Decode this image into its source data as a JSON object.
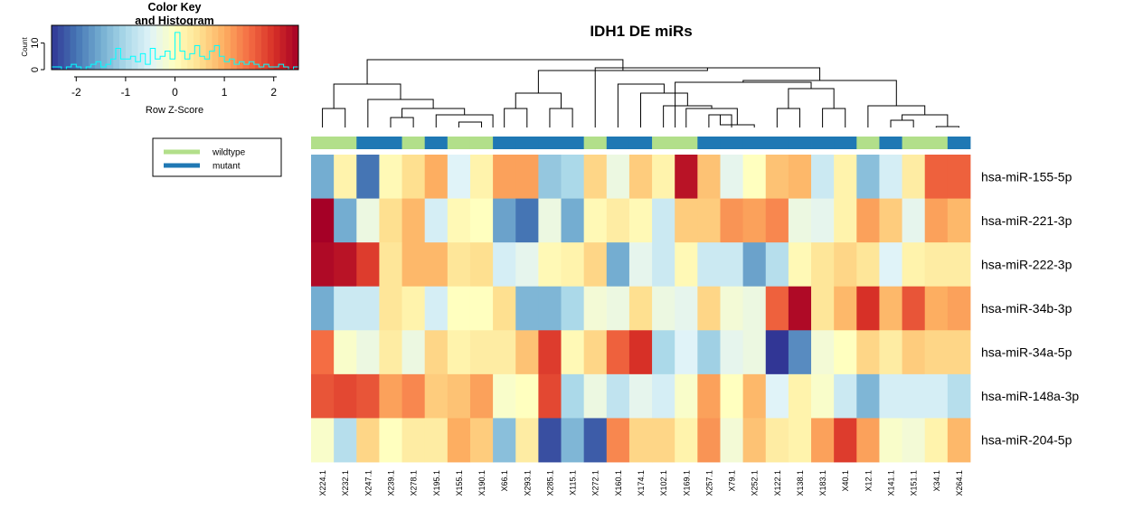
{
  "chart_data": {
    "type": "heatmap",
    "title": "IDH1 DE miRs",
    "rows": [
      "hsa-miR-155-5p",
      "hsa-miR-221-3p",
      "hsa-miR-222-3p",
      "hsa-miR-34b-3p",
      "hsa-miR-34a-5p",
      "hsa-miR-148a-3p",
      "hsa-miR-204-5p"
    ],
    "columns": [
      "X224.1",
      "X232.1",
      "X247.1",
      "X239.1",
      "X278.1",
      "X195.1",
      "X155.1",
      "X190.1",
      "X66.1",
      "X293.1",
      "X285.1",
      "X115.1",
      "X272.1",
      "X160.1",
      "X174.1",
      "X102.1",
      "X169.1",
      "X257.1",
      "X79.1",
      "X252.1",
      "X122.1",
      "X138.1",
      "X183.1",
      "X40.1",
      "X12.1",
      "X141.1",
      "X151.1",
      "X34.1",
      "X264.1"
    ],
    "groups": [
      "wildtype",
      "wildtype",
      "mutant",
      "mutant",
      "wildtype",
      "mutant",
      "wildtype",
      "wildtype",
      "mutant",
      "mutant",
      "mutant",
      "mutant",
      "wildtype",
      "mutant",
      "mutant",
      "wildtype",
      "wildtype",
      "mutant",
      "mutant",
      "mutant",
      "mutant",
      "mutant",
      "mutant",
      "mutant",
      "wildtype",
      "mutant",
      "wildtype",
      "wildtype",
      "mutant"
    ],
    "group_colors": {
      "wildtype": "#b2df8a",
      "mutant": "#1f78b4"
    },
    "values": [
      [
        -1.5,
        0.2,
        -2.0,
        0.1,
        0.5,
        1.0,
        -0.5,
        0.2,
        1.1,
        1.1,
        -1.2,
        -1.0,
        0.6,
        -0.3,
        0.7,
        0.2,
        2.3,
        0.8,
        -0.4,
        0.0,
        0.8,
        0.9,
        -0.7,
        0.2,
        -1.3,
        -0.6,
        0.3,
        1.6,
        1.6
      ],
      [
        2.5,
        -1.5,
        -0.3,
        0.5,
        0.9,
        -0.6,
        0.1,
        0.0,
        -1.6,
        -2.0,
        -0.3,
        -1.5,
        0.1,
        0.3,
        0.1,
        -0.7,
        0.7,
        0.7,
        1.2,
        1.1,
        1.3,
        -0.3,
        -0.4,
        0.2,
        1.1,
        0.7,
        -0.4,
        1.1,
        0.9
      ],
      [
        2.4,
        2.3,
        1.9,
        0.4,
        0.9,
        0.9,
        0.4,
        0.5,
        -0.6,
        -0.4,
        0.1,
        0.2,
        0.6,
        -1.5,
        -0.4,
        -0.7,
        0.1,
        -0.7,
        -0.7,
        -1.6,
        -0.9,
        0.1,
        0.4,
        0.6,
        0.4,
        -0.5,
        0.2,
        0.3,
        0.3
      ],
      [
        -1.5,
        -0.7,
        -0.7,
        0.4,
        0.2,
        -0.6,
        0.0,
        0.0,
        0.5,
        -1.4,
        -1.4,
        -1.0,
        -0.2,
        -0.3,
        0.5,
        -0.3,
        -0.4,
        0.6,
        -0.2,
        -0.3,
        1.6,
        2.4,
        0.4,
        0.9,
        2.0,
        0.9,
        1.7,
        1.0,
        1.1
      ],
      [
        1.5,
        -0.1,
        -0.3,
        0.3,
        -0.3,
        0.6,
        0.2,
        0.3,
        0.3,
        0.8,
        1.9,
        0.1,
        0.6,
        1.6,
        2.0,
        -1.0,
        -0.5,
        -1.1,
        -0.4,
        -0.3,
        -2.5,
        -1.8,
        -0.2,
        0.0,
        0.6,
        0.3,
        0.7,
        0.6,
        0.6
      ],
      [
        1.7,
        1.8,
        1.7,
        1.1,
        1.3,
        0.7,
        0.8,
        1.1,
        -0.1,
        0.0,
        1.8,
        -1.0,
        -0.3,
        -0.8,
        -0.4,
        -0.6,
        -0.1,
        1.1,
        0.0,
        0.9,
        -0.5,
        0.2,
        -0.1,
        -0.7,
        -1.4,
        -0.6,
        -0.6,
        -0.6,
        -0.9
      ],
      [
        -0.1,
        -0.9,
        0.6,
        0.0,
        0.3,
        0.3,
        1.0,
        0.7,
        -1.3,
        0.3,
        -2.3,
        -1.4,
        -2.2,
        1.3,
        0.6,
        0.6,
        0.2,
        1.2,
        -0.2,
        0.8,
        0.3,
        0.2,
        1.1,
        1.9,
        1.1,
        -0.1,
        -0.2,
        0.2,
        0.9
      ]
    ],
    "color_key": {
      "title_line1": "Color Key",
      "title_line2": "and Histogram",
      "xlabel": "Row Z-Score",
      "ylabel": "Count",
      "xlim": [
        -2.5,
        2.5
      ],
      "xticks": [
        "-2",
        "-1",
        "0",
        "1",
        "2"
      ],
      "yticks": [
        "0",
        "10"
      ],
      "histogram_counts": [
        1,
        1,
        0,
        1,
        2,
        1,
        0,
        1,
        2,
        3,
        1,
        2,
        4,
        8,
        4,
        4,
        5,
        3,
        6,
        2,
        8,
        4,
        5,
        7,
        4,
        14,
        7,
        4,
        6,
        9,
        5,
        4,
        7,
        9,
        5,
        3,
        4,
        2,
        3,
        2,
        3,
        2,
        1,
        2,
        1,
        1,
        2,
        1,
        0,
        1
      ],
      "histogram_color": "#00ffff"
    },
    "legend": [
      {
        "label": "wildtype",
        "color": "#b2df8a"
      },
      {
        "label": "mutant",
        "color": "#1f78b4"
      }
    ],
    "palette": [
      "#313695",
      "#4575b4",
      "#74add1",
      "#abd9e9",
      "#e0f3f8",
      "#ffffbf",
      "#fee090",
      "#fdae61",
      "#f46d43",
      "#d73027",
      "#a50026"
    ]
  }
}
